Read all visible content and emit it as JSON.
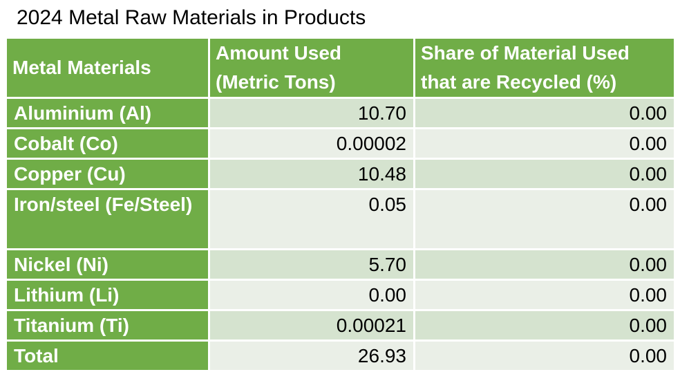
{
  "title": "2024 Metal Raw Materials in Products",
  "table": {
    "headers": [
      "Metal Materials",
      "Amount Used (Metric Tons)",
      "Share of Material Used that are Recycled (%)"
    ],
    "rows": [
      {
        "material": "Aluminium (Al)",
        "amount": "10.70",
        "recycled": "0.00"
      },
      {
        "material": "Cobalt (Co)",
        "amount": "0.00002",
        "recycled": "0.00"
      },
      {
        "material": "Copper (Cu)",
        "amount": "10.48",
        "recycled": "0.00"
      },
      {
        "material": "Iron/steel (Fe/Steel)",
        "amount": "0.05",
        "recycled": "0.00"
      },
      {
        "material": "Nickel (Ni)",
        "amount": "5.70",
        "recycled": "0.00"
      },
      {
        "material": "Lithium (Li)",
        "amount": "0.00",
        "recycled": "0.00"
      },
      {
        "material": "Titanium (Ti)",
        "amount": "0.00021",
        "recycled": "0.00"
      },
      {
        "material": "Total",
        "amount": "26.93",
        "recycled": "0.00"
      }
    ]
  },
  "colors": {
    "header_green": "#70ad47",
    "band_dark": "#d5e3cf",
    "band_light": "#eaefe7"
  }
}
